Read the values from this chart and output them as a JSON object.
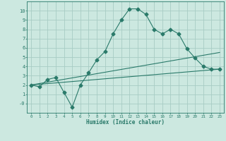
{
  "xlabel": "Humidex (Indice chaleur)",
  "ylabel": "",
  "bg_color": "#cce8e0",
  "grid_color": "#a8ccc4",
  "line_color": "#2a7a6a",
  "xlim": [
    -0.5,
    23.5
  ],
  "ylim": [
    -1.0,
    11.0
  ],
  "xticks": [
    0,
    1,
    2,
    3,
    4,
    5,
    6,
    7,
    8,
    9,
    10,
    11,
    12,
    13,
    14,
    15,
    16,
    17,
    18,
    19,
    20,
    21,
    22,
    23
  ],
  "yticks": [
    0,
    1,
    2,
    3,
    4,
    5,
    6,
    7,
    8,
    9,
    10
  ],
  "ytick_labels": [
    "-0",
    "1",
    "2",
    "3",
    "4",
    "5",
    "6",
    "7",
    "8",
    "9",
    "10"
  ],
  "curve1_x": [
    0,
    1,
    2,
    3,
    4,
    5,
    6,
    7,
    8,
    9,
    10,
    11,
    12,
    13,
    14,
    15,
    16,
    17,
    18,
    19,
    20,
    21,
    22,
    23
  ],
  "curve1_y": [
    2.0,
    1.8,
    2.6,
    2.8,
    1.2,
    -0.4,
    2.0,
    3.3,
    4.7,
    5.6,
    7.5,
    9.0,
    10.2,
    10.2,
    9.6,
    8.0,
    7.5,
    8.0,
    7.5,
    5.9,
    4.9,
    4.0,
    3.7,
    3.7
  ],
  "curve2_x": [
    0,
    23
  ],
  "curve2_y": [
    2.0,
    3.7
  ],
  "curve3_x": [
    0,
    23
  ],
  "curve3_y": [
    2.0,
    5.5
  ],
  "markersize": 2.5
}
